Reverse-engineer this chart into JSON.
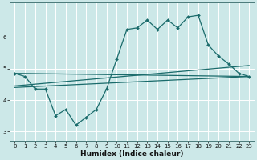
{
  "xlabel": "Humidex (Indice chaleur)",
  "bg_color": "#cce8e8",
  "grid_color": "#ffffff",
  "line_color": "#1a6b6b",
  "xlim": [
    -0.5,
    23.5
  ],
  "ylim": [
    2.7,
    7.1
  ],
  "xticks": [
    0,
    1,
    2,
    3,
    4,
    5,
    6,
    7,
    8,
    9,
    10,
    11,
    12,
    13,
    14,
    15,
    16,
    17,
    18,
    19,
    20,
    21,
    22,
    23
  ],
  "yticks": [
    3,
    4,
    5,
    6
  ],
  "main_x": [
    0,
    1,
    2,
    3,
    4,
    5,
    6,
    7,
    8,
    9,
    10,
    11,
    12,
    13,
    14,
    15,
    16,
    17,
    18,
    19,
    20,
    21,
    22,
    23
  ],
  "main_y": [
    4.85,
    4.75,
    4.35,
    4.35,
    3.5,
    3.7,
    3.2,
    3.45,
    3.7,
    4.35,
    5.3,
    6.25,
    6.3,
    6.55,
    6.25,
    6.55,
    6.3,
    6.65,
    6.7,
    5.75,
    5.4,
    5.15,
    4.85,
    4.75
  ],
  "line1_x": [
    0,
    23
  ],
  "line1_y": [
    4.85,
    4.75
  ],
  "line2_x": [
    0,
    23
  ],
  "line2_y": [
    4.45,
    5.1
  ],
  "line3_x": [
    0,
    23
  ],
  "line3_y": [
    4.4,
    4.75
  ]
}
